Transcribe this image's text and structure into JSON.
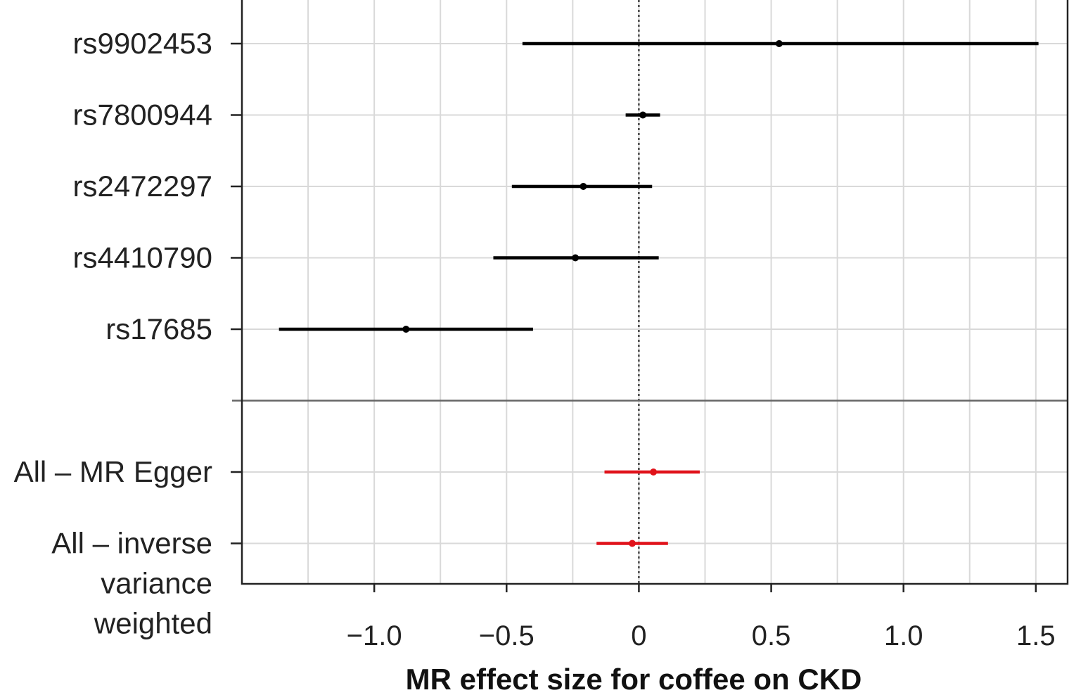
{
  "chart_data": {
    "type": "forest",
    "xlabel": "MR effect size for coffee on CKD",
    "xlim": [
      -1.5,
      1.62
    ],
    "xticks": [
      {
        "value": -1.0,
        "label": "−1.0"
      },
      {
        "value": -0.5,
        "label": "−0.5"
      },
      {
        "value": 0,
        "label": "0"
      },
      {
        "value": 0.5,
        "label": "0.5"
      },
      {
        "value": 1.0,
        "label": "1.0"
      },
      {
        "value": 1.5,
        "label": "1.5"
      }
    ],
    "grid": true,
    "reference_line": {
      "value": 0,
      "style": "dotted"
    },
    "rows": [
      {
        "label": [
          "rs9902453"
        ],
        "estimate": 0.53,
        "lower": -0.44,
        "upper": 1.51,
        "group": "snp"
      },
      {
        "label": [
          "rs7800944"
        ],
        "estimate": 0.015,
        "lower": -0.05,
        "upper": 0.08,
        "group": "snp"
      },
      {
        "label": [
          "rs2472297"
        ],
        "estimate": -0.21,
        "lower": -0.48,
        "upper": 0.05,
        "group": "snp"
      },
      {
        "label": [
          "rs4410790"
        ],
        "estimate": -0.24,
        "lower": -0.55,
        "upper": 0.075,
        "group": "snp"
      },
      {
        "label": [
          "rs17685"
        ],
        "estimate": -0.88,
        "lower": -1.36,
        "upper": -0.4,
        "group": "snp"
      },
      {
        "label": [
          "All – MR Egger"
        ],
        "estimate": 0.055,
        "lower": -0.13,
        "upper": 0.23,
        "group": "summary"
      },
      {
        "label": [
          "All – inverse",
          "variance",
          "weighted"
        ],
        "estimate": -0.025,
        "lower": -0.16,
        "upper": 0.11,
        "group": "summary"
      }
    ],
    "colors": {
      "snp": "#000000",
      "summary": "#e0121a"
    }
  }
}
